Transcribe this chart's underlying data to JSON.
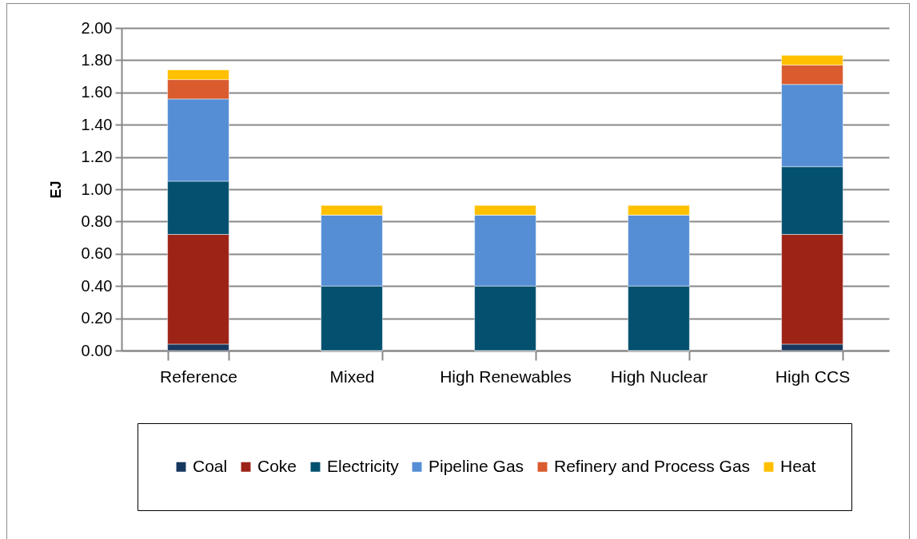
{
  "chart_data": {
    "type": "bar",
    "stacked": true,
    "ylabel": "EJ",
    "categories": [
      "Reference",
      "Mixed",
      "High Renewables",
      "High Nuclear",
      "High CCS"
    ],
    "series": [
      {
        "name": "Coal",
        "color": "#17375e",
        "values": [
          0.04,
          0,
          0,
          0,
          0.04
        ]
      },
      {
        "name": "Coke",
        "color": "#9c2316",
        "values": [
          0.68,
          0,
          0,
          0,
          0.68
        ]
      },
      {
        "name": "Electricity",
        "color": "#03506f",
        "values": [
          0.33,
          0.4,
          0.4,
          0.4,
          0.42
        ]
      },
      {
        "name": "Pipeline Gas",
        "color": "#558ed5",
        "values": [
          0.51,
          0.44,
          0.44,
          0.44,
          0.51
        ]
      },
      {
        "name": "Refinery and Process Gas",
        "color": "#d95b2e",
        "values": [
          0.12,
          0,
          0,
          0,
          0.12
        ]
      },
      {
        "name": "Heat",
        "color": "#ffc000",
        "values": [
          0.06,
          0.06,
          0.06,
          0.06,
          0.06
        ]
      }
    ],
    "ylim": [
      0,
      2
    ],
    "yticks": [
      {
        "value": 0,
        "label": "0.00"
      },
      {
        "value": 0.2,
        "label": "0.20"
      },
      {
        "value": 0.4,
        "label": "0.40"
      },
      {
        "value": 0.6,
        "label": "0.60"
      },
      {
        "value": 0.8,
        "label": "0.80"
      },
      {
        "value": 1,
        "label": "1.00"
      },
      {
        "value": 1.2,
        "label": "1.20"
      },
      {
        "value": 1.4,
        "label": "1.40"
      },
      {
        "value": 1.6,
        "label": "1.60"
      },
      {
        "value": 1.8,
        "label": "1.80"
      },
      {
        "value": 2,
        "label": "2.00"
      }
    ],
    "grid": "y",
    "legend": "bottom"
  }
}
